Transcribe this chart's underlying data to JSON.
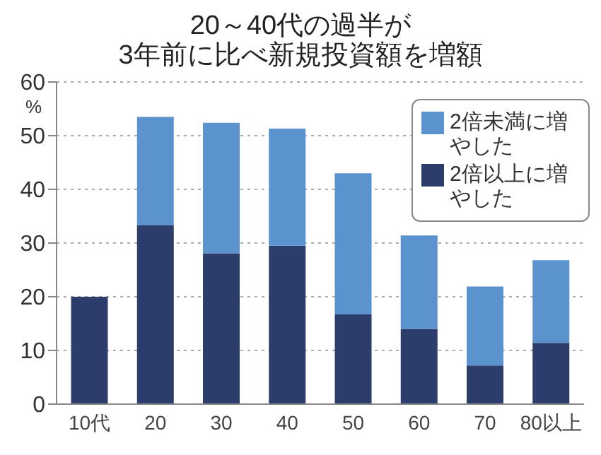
{
  "chart_data": {
    "type": "bar",
    "title": "20～40代の過半が\n3年前に比べ新規投資額を増額",
    "ylabel": "%",
    "categories": [
      "10代",
      "20",
      "30",
      "40",
      "50",
      "60",
      "70",
      "80以上"
    ],
    "stacked": true,
    "series": [
      {
        "name": "2倍以上に増やした",
        "color": "#2c3d6b",
        "values": [
          20,
          33.3,
          28.1,
          29.5,
          16.7,
          14.0,
          7.2,
          11.4
        ]
      },
      {
        "name": "2倍未満に増やした",
        "color": "#5b93cf",
        "values": [
          0,
          20.2,
          24.3,
          21.8,
          26.3,
          17.4,
          14.7,
          15.4
        ]
      }
    ],
    "ylim": [
      0,
      60
    ],
    "yticks": [
      0,
      10,
      20,
      30,
      40,
      50,
      60
    ],
    "grid": "y",
    "legend": "top right"
  }
}
